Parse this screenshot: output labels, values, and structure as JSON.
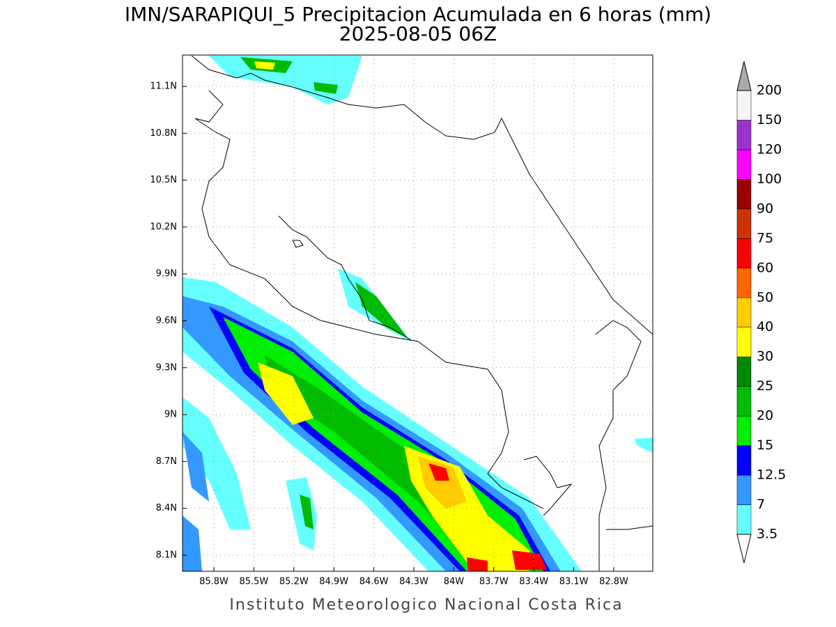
{
  "title": "IMN/SARAPIQUI_5 Precipitacion Acumulada en 6 horas (mm)",
  "subtitle": "2025-08-05 06Z",
  "map": {
    "x_labels": [
      "85.8W",
      "85.5W",
      "85.2W",
      "84.9W",
      "84.6W",
      "84.3W",
      "84W",
      "83.7W",
      "83.4W",
      "83.1W",
      "82.8W"
    ],
    "y_labels": [
      "11.1N",
      "10.8N",
      "10.5N",
      "10.2N",
      "9.9N",
      "9.6N",
      "9.3N",
      "9N",
      "8.7N",
      "8.4N",
      "8.1N"
    ]
  },
  "colorbar": {
    "levels": [
      "3.5",
      "7",
      "12.5",
      "15",
      "20",
      "25",
      "30",
      "40",
      "50",
      "60",
      "75",
      "90",
      "100",
      "120",
      "150",
      "200"
    ],
    "colors": [
      "#66ffff",
      "#3399ff",
      "#0000ff",
      "#00ee00",
      "#00bb00",
      "#008800",
      "#ffff00",
      "#ffcc00",
      "#ff6600",
      "#ff0000",
      "#cc3300",
      "#990000",
      "#ff00ff",
      "#9933cc",
      "#f5f5f5"
    ]
  },
  "footer": "Instituto Meteorologico Nacional Costa Rica"
}
